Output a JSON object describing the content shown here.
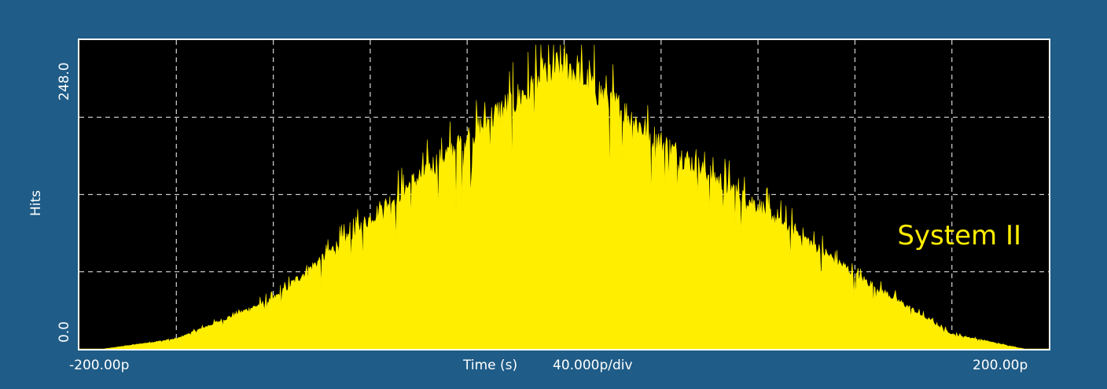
{
  "chart_data": {
    "type": "histogram",
    "title": "",
    "xlabel": "Time (s)",
    "x_scale_text": "40.000p/div",
    "x_tick_left": "-200.00p",
    "x_tick_right": "200.00p",
    "xlim": [
      -200,
      200
    ],
    "x_units": "ps",
    "ylabel": "Hits",
    "y_tick_top": "248.0",
    "y_tick_bottom": "0.0",
    "ylim": [
      0,
      248
    ],
    "grid": true,
    "divisions": {
      "x": 10,
      "y": 4
    },
    "annotation": "System II",
    "colors": {
      "background": "#1f5c87",
      "plot_bg": "#000000",
      "fill": "#ffee00",
      "grid": "#c8c8c8",
      "text": "#ffffff"
    },
    "series": [
      {
        "shape": "triangular",
        "x": [
          -190,
          -160,
          -120,
          -80,
          -40,
          0,
          40,
          80,
          120,
          160,
          190
        ],
        "y": [
          0,
          8,
          40,
          105,
          170,
          230,
          165,
          115,
          60,
          12,
          0
        ]
      }
    ]
  }
}
